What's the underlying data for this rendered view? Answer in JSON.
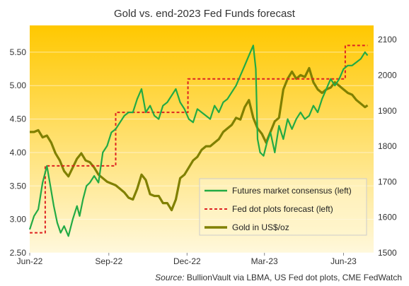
{
  "chart_data": {
    "type": "line",
    "title": "Gold vs. end-2023 Fed Funds forecast",
    "source_label": "Source:",
    "source_text": "BullionVault via LBMA, US Fed dot plots, CME FedWatch",
    "x_ticks": [
      "Jun-22",
      "Sep-22",
      "Dec-22",
      "Mar-23",
      "Jun-23"
    ],
    "x_tick_positions": [
      0,
      92,
      183,
      273,
      365
    ],
    "x_range": [
      0,
      400
    ],
    "y_left": {
      "ticks": [
        "2.50",
        "3.00",
        "3.50",
        "4.00",
        "4.50",
        "5.00",
        "5.50"
      ],
      "ylim": [
        2.5,
        5.9
      ]
    },
    "y_right": {
      "ticks": [
        "1500",
        "1600",
        "1700",
        "1800",
        "1900",
        "2000",
        "2100"
      ],
      "ylim": [
        1500,
        2140
      ]
    },
    "background_gradient": [
      "#ffc800",
      "#fff8dc"
    ],
    "legend_placement": "center-right inside plot",
    "series": [
      {
        "name": "Futures market consensus (left)",
        "axis": "left",
        "style": "solid",
        "color": "#22aa44",
        "x": [
          0,
          5,
          10,
          15,
          20,
          24,
          28,
          32,
          36,
          40,
          45,
          50,
          55,
          58,
          62,
          66,
          70,
          75,
          80,
          85,
          90,
          95,
          100,
          105,
          110,
          115,
          120,
          125,
          130,
          135,
          140,
          145,
          150,
          155,
          160,
          165,
          170,
          175,
          180,
          185,
          190,
          195,
          200,
          205,
          210,
          215,
          220,
          225,
          230,
          235,
          240,
          245,
          250,
          255,
          260,
          263,
          265,
          268,
          272,
          276,
          280,
          285,
          290,
          295,
          300,
          305,
          310,
          315,
          320,
          325,
          330,
          335,
          340,
          345,
          350,
          355,
          360,
          365,
          370,
          375,
          380,
          385,
          390,
          393
        ],
        "values": [
          2.85,
          3.05,
          3.15,
          3.55,
          3.8,
          3.5,
          3.2,
          2.95,
          2.8,
          2.9,
          2.75,
          3.0,
          3.2,
          3.05,
          3.3,
          3.5,
          3.55,
          3.65,
          3.55,
          4.0,
          4.1,
          4.3,
          4.35,
          4.45,
          4.55,
          4.6,
          4.6,
          4.8,
          4.95,
          4.6,
          4.7,
          4.55,
          4.5,
          4.7,
          4.75,
          4.85,
          4.95,
          4.75,
          4.65,
          4.5,
          4.45,
          4.65,
          4.6,
          4.55,
          4.5,
          4.7,
          4.6,
          4.75,
          4.8,
          4.9,
          5.0,
          5.15,
          5.3,
          5.45,
          5.6,
          5.25,
          4.2,
          4.0,
          3.95,
          4.15,
          4.3,
          4.0,
          4.4,
          4.2,
          4.5,
          4.35,
          4.5,
          4.6,
          4.5,
          4.55,
          4.7,
          4.6,
          4.8,
          4.95,
          5.1,
          5.0,
          5.1,
          5.25,
          5.3,
          5.3,
          5.35,
          5.4,
          5.5,
          5.45
        ]
      },
      {
        "name": "Fed dot plots forecast (left)",
        "axis": "left",
        "style": "dashed",
        "color": "#dd2222",
        "x": [
          0,
          18,
          18,
          100,
          100,
          184,
          184,
          367,
          367,
          393
        ],
        "values": [
          2.8,
          2.8,
          3.8,
          3.8,
          4.6,
          4.6,
          5.1,
          5.1,
          5.6,
          5.6
        ]
      },
      {
        "name": "Gold in US$/oz",
        "axis": "right",
        "style": "solid",
        "color": "#808000",
        "x": [
          0,
          5,
          10,
          15,
          20,
          25,
          30,
          35,
          40,
          45,
          50,
          55,
          60,
          65,
          70,
          75,
          80,
          85,
          90,
          95,
          100,
          105,
          110,
          115,
          120,
          125,
          130,
          135,
          140,
          145,
          150,
          155,
          160,
          165,
          170,
          175,
          180,
          185,
          190,
          195,
          200,
          205,
          210,
          215,
          220,
          225,
          230,
          235,
          240,
          245,
          250,
          255,
          260,
          265,
          270,
          275,
          280,
          285,
          290,
          295,
          300,
          305,
          310,
          315,
          320,
          325,
          330,
          335,
          340,
          345,
          350,
          355,
          360,
          365,
          370,
          375,
          380,
          385,
          390,
          393
        ],
        "values": [
          1840,
          1840,
          1845,
          1825,
          1830,
          1810,
          1780,
          1760,
          1730,
          1715,
          1740,
          1765,
          1780,
          1760,
          1755,
          1740,
          1720,
          1710,
          1700,
          1695,
          1690,
          1680,
          1670,
          1655,
          1650,
          1680,
          1720,
          1705,
          1665,
          1660,
          1660,
          1640,
          1640,
          1620,
          1650,
          1710,
          1720,
          1740,
          1760,
          1770,
          1790,
          1800,
          1800,
          1810,
          1820,
          1840,
          1850,
          1860,
          1880,
          1875,
          1910,
          1930,
          1880,
          1850,
          1835,
          1810,
          1840,
          1870,
          1880,
          1960,
          1990,
          2010,
          1990,
          2000,
          1995,
          2020,
          1980,
          1960,
          1950,
          1960,
          1965,
          1980,
          1970,
          1960,
          1950,
          1945,
          1930,
          1920,
          1910,
          1915
        ]
      }
    ]
  }
}
